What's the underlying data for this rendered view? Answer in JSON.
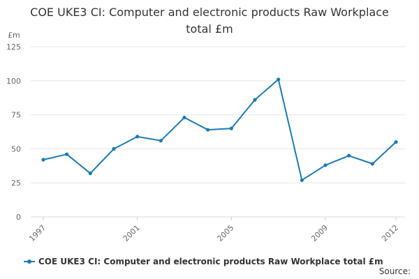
{
  "chart_data": {
    "type": "line",
    "title": "COE UKE3 CI: Computer and electronic products Raw Workplace total £m",
    "ylabel": "£m",
    "xlabel": "",
    "x": [
      1997,
      1998,
      1999,
      2000,
      2001,
      2002,
      2003,
      2004,
      2005,
      2006,
      2007,
      2008,
      2009,
      2010,
      2011,
      2012
    ],
    "series": [
      {
        "name": "COE UKE3 CI: Computer and electronic products Raw Workplace total £m",
        "values": [
          42,
          46,
          32,
          50,
          59,
          56,
          73,
          64,
          65,
          86,
          101,
          27,
          38,
          45,
          39,
          55
        ]
      }
    ],
    "x_tick_labels": [
      "1997",
      "2001",
      "2005",
      "2009",
      "2012"
    ],
    "y_ticks": [
      0,
      25,
      50,
      75,
      100,
      125
    ],
    "ylim": [
      0,
      125
    ],
    "xlim": [
      1997,
      2012
    ],
    "grid": "horizontal",
    "legend_position": "bottom-left",
    "color": "#1a7ab8"
  },
  "source_label": "Source:"
}
